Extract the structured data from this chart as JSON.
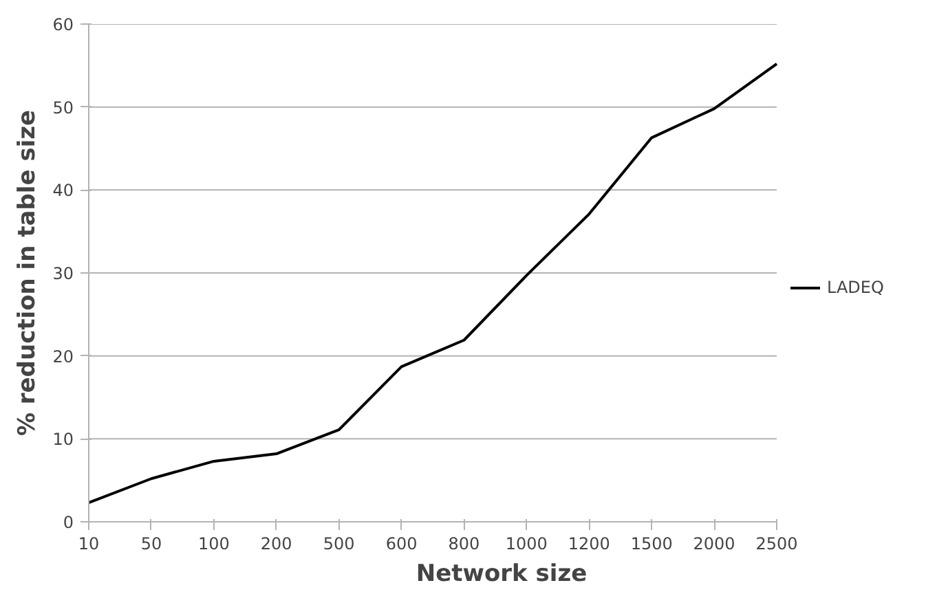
{
  "chart_data": {
    "type": "line",
    "xlabel": "Network size",
    "ylabel": "% reduction in table size",
    "categories": [
      "10",
      "50",
      "100",
      "200",
      "500",
      "600",
      "800",
      "1000",
      "1200",
      "1500",
      "2000",
      "2500"
    ],
    "series": [
      {
        "name": "LADEQ",
        "color": "#000000",
        "values": [
          2.3,
          5.2,
          7.3,
          8.2,
          11.1,
          18.7,
          21.9,
          29.7,
          37.1,
          46.3,
          49.8,
          55.2
        ]
      }
    ],
    "ylim": [
      0,
      60
    ],
    "yticks": [
      0,
      10,
      20,
      30,
      40,
      50,
      60
    ],
    "grid": "y",
    "legend": "right",
    "marker": "none",
    "line_style": "solid"
  }
}
